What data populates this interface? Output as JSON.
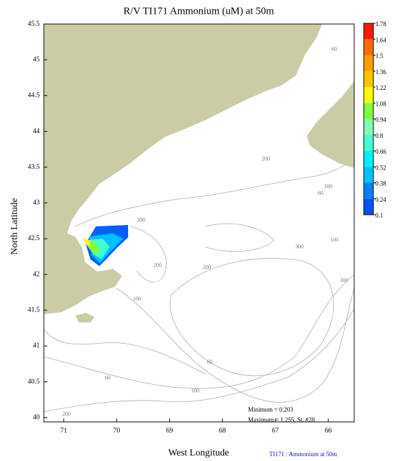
{
  "map": {
    "title": "R/V TI171 Ammonium (uM) at 50m",
    "x_label": "West Longitude",
    "y_label": "North Latitude",
    "xlim": [
      71.375,
      65.51
    ],
    "ylim": [
      39.94,
      45.5
    ],
    "xticks": [
      71,
      70,
      69,
      68,
      67,
      66
    ],
    "yticks": [
      45.5,
      45,
      44.5,
      44,
      43.5,
      43,
      42.5,
      42,
      41.5,
      41,
      40.5,
      40
    ],
    "colorbar": {
      "levels": [
        1.78,
        1.64,
        1.5,
        1.36,
        1.22,
        1.08,
        0.94,
        0.8,
        0.66,
        0.52,
        0.38,
        0.24,
        0.1
      ],
      "colors": [
        "#ff1a00",
        "#ff6a00",
        "#ff9c00",
        "#ffc400",
        "#ffff00",
        "#80ff40",
        "#80ffb0",
        "#40ffd0",
        "#00f0ff",
        "#00c0ff",
        "#0080ff",
        "#0050ff"
      ]
    },
    "contour_labels": [
      "60",
      "200",
      "200",
      "60",
      "100",
      "100",
      "300",
      "200",
      "200",
      "100",
      "300",
      "60",
      "60",
      "100",
      "200"
    ],
    "annotations": [
      "Minimum = 0.203",
      "Maximum = 1.255, St. #28"
    ],
    "footer": "TI171 : Ammonium at 50m"
  }
}
